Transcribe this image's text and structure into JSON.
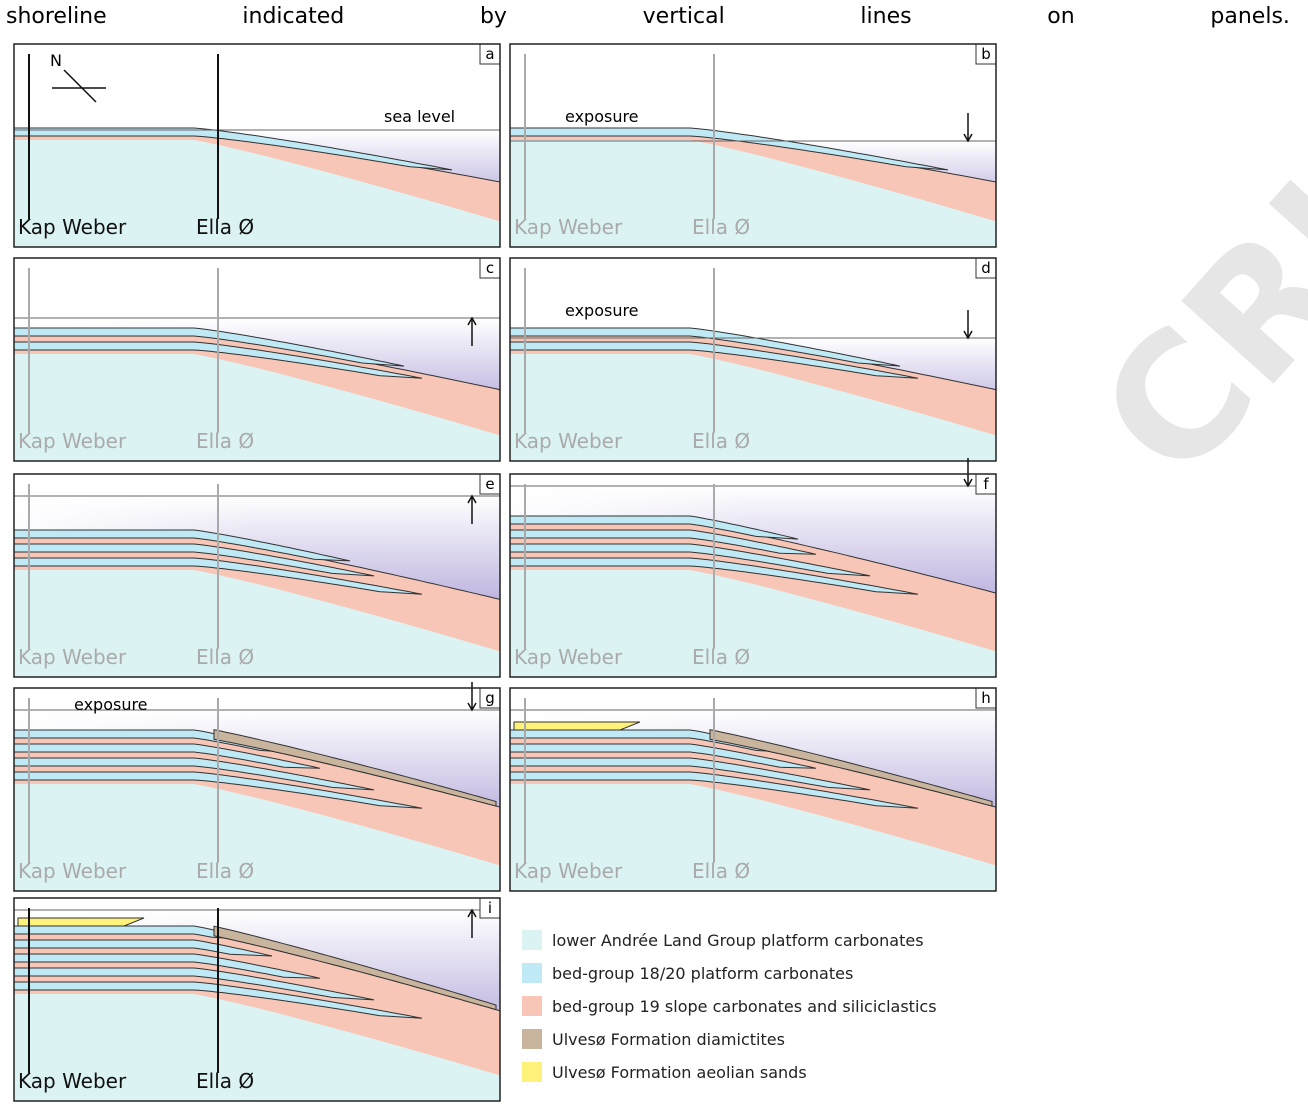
{
  "caption": [
    "shoreline",
    "indicated",
    "by",
    "vertical",
    "lines",
    "on",
    "panels."
  ],
  "watermark": "CRIPT",
  "north": "N",
  "panels": [
    {
      "letter": "a",
      "left": "Kap Weber",
      "right": "Ella Ø",
      "note": "sea level"
    },
    {
      "letter": "b",
      "left": "Kap Weber",
      "right": "Ella Ø",
      "note": "exposure"
    },
    {
      "letter": "c",
      "left": "Kap Weber",
      "right": "Ella Ø"
    },
    {
      "letter": "d",
      "left": "Kap Weber",
      "right": "Ella Ø",
      "note": "exposure"
    },
    {
      "letter": "e",
      "left": "Kap Weber",
      "right": "Ella Ø"
    },
    {
      "letter": "f",
      "left": "Kap Weber",
      "right": "Ella Ø"
    },
    {
      "letter": "g",
      "left": "Kap Weber",
      "right": "Ella Ø",
      "note": "exposure"
    },
    {
      "letter": "h",
      "left": "Kap Weber",
      "right": "Ella Ø"
    },
    {
      "letter": "i",
      "left": "Kap Weber",
      "right": "Ella Ø"
    }
  ],
  "legend": [
    {
      "label": "lower Andrée Land Group platform carbonates",
      "color": "#dcf3f3"
    },
    {
      "label": "bed-group 18/20 platform carbonates",
      "color": "#bfe9f5"
    },
    {
      "label": "bed-group 19 slope carbonates and siliciclastics",
      "color": "#f7c6b6"
    },
    {
      "label": "Ulvesø Formation diamictites",
      "color": "#c9b59e"
    },
    {
      "label": "Ulvesø Formation aeolian sands",
      "color": "#fff27a"
    }
  ]
}
